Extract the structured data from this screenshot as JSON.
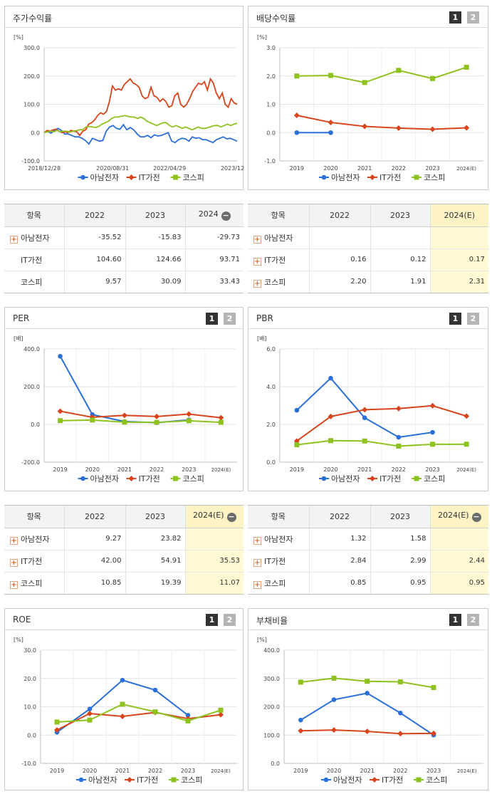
{
  "legend": [
    "아남전자",
    "IT가전",
    "코스피"
  ],
  "colors": {
    "s0": "#2b6fd8",
    "s1": "#d8441c",
    "s2": "#8dc21f"
  },
  "charts": [
    {
      "id": "ret",
      "title": "주가수익률",
      "unit": "[%]",
      "buttons": [],
      "chart_data": {
        "type": "line",
        "xlabels": [
          "2018/12/28",
          "2020/08/31",
          "2022/04/29",
          "2023/12/28"
        ],
        "yticks": [
          "300.0",
          "200.0",
          "100.0",
          "0.0",
          "-100.0"
        ],
        "ylim": [
          -100,
          300
        ],
        "series": [
          {
            "name": "아남전자",
            "values": [
              0,
              5,
              -2,
              8,
              15,
              8,
              -5,
              -5,
              -10,
              -15,
              -15,
              -20,
              -28,
              -40,
              -20,
              -25,
              -30,
              -28,
              5,
              20,
              25,
              15,
              12,
              28,
              10,
              18,
              10,
              -5,
              -15,
              -15,
              -10,
              -18,
              -8,
              -12,
              -10,
              -5,
              0,
              -30,
              -35,
              -25,
              -20,
              -22,
              -30,
              -15,
              -20,
              -18,
              -25,
              -25,
              -30,
              -35,
              -25,
              -20,
              -15,
              -22,
              -20,
              -25,
              -30
            ]
          },
          {
            "name": "IT가전",
            "values": [
              0,
              8,
              5,
              10,
              12,
              5,
              0,
              3,
              0,
              8,
              5,
              3,
              -10,
              5,
              10,
              30,
              35,
              45,
              60,
              70,
              65,
              75,
              110,
              165,
              150,
              155,
              150,
              170,
              180,
              190,
              175,
              170,
              160,
              130,
              120,
              125,
              160,
              130,
              125,
              110,
              120,
              110,
              90,
              95,
              130,
              140,
              100,
              90,
              100,
              120,
              145,
              160,
              175,
              170,
              180,
              150,
              190,
              175,
              140,
              120,
              140,
              100,
              90,
              120,
              105,
              100
            ]
          },
          {
            "name": "코스피",
            "values": [
              0,
              3,
              5,
              3,
              8,
              3,
              5,
              5,
              2,
              5,
              7,
              10,
              10,
              20,
              22,
              20,
              18,
              22,
              30,
              35,
              40,
              50,
              55,
              55,
              58,
              60,
              58,
              55,
              55,
              50,
              55,
              50,
              40,
              35,
              30,
              25,
              30,
              35,
              35,
              25,
              20,
              25,
              20,
              15,
              20,
              15,
              10,
              15,
              20,
              15,
              15,
              18,
              22,
              25,
              25,
              20,
              25,
              30,
              25,
              30,
              33
            ]
          }
        ]
      }
    },
    {
      "id": "div",
      "title": "배당수익률",
      "unit": "[%]",
      "buttons": [
        "1",
        "2"
      ],
      "chart_data": {
        "type": "line",
        "categories": [
          "2019",
          "2020",
          "2021",
          "2022",
          "2023",
          "2024(E)"
        ],
        "yticks": [
          "3.0",
          "2.0",
          "1.0",
          "0.0",
          "-1.0"
        ],
        "ylim": [
          -1,
          3
        ],
        "series": [
          {
            "name": "아남전자",
            "values": [
              0.0,
              0.0,
              null,
              null,
              null,
              null
            ]
          },
          {
            "name": "IT가전",
            "values": [
              0.61,
              0.36,
              0.22,
              0.16,
              0.12,
              0.17
            ]
          },
          {
            "name": "코스피",
            "values": [
              2.0,
              2.02,
              1.77,
              2.2,
              1.91,
              2.31
            ]
          }
        ]
      }
    },
    {
      "id": "per",
      "title": "PER",
      "unit": "[배]",
      "buttons": [
        "1",
        "2"
      ],
      "chart_data": {
        "type": "line",
        "categories": [
          "2019",
          "2020",
          "2021",
          "2022",
          "2023",
          "2024(E)"
        ],
        "yticks": [
          "400.0",
          "200.0",
          "0.0",
          "-200.0"
        ],
        "ylim": [
          -200,
          400
        ],
        "series": [
          {
            "name": "아남전자",
            "values": [
              361,
              52,
              15,
              9.27,
              23.82,
              null
            ]
          },
          {
            "name": "IT가전",
            "values": [
              70,
              38,
              48,
              42.0,
              54.91,
              35.53
            ]
          },
          {
            "name": "코스피",
            "values": [
              20,
              23,
              12,
              10.85,
              19.39,
              11.07
            ]
          }
        ]
      }
    },
    {
      "id": "pbr",
      "title": "PBR",
      "unit": "[배]",
      "buttons": [
        "1",
        "2"
      ],
      "chart_data": {
        "type": "line",
        "categories": [
          "2019",
          "2020",
          "2021",
          "2022",
          "2023",
          "2024(E)"
        ],
        "yticks": [
          "6.0",
          "4.0",
          "2.0",
          "0.0"
        ],
        "ylim": [
          0,
          6
        ],
        "series": [
          {
            "name": "아남전자",
            "values": [
              2.75,
              4.45,
              2.35,
              1.32,
              1.58,
              null
            ]
          },
          {
            "name": "IT가전",
            "values": [
              1.12,
              2.42,
              2.78,
              2.84,
              2.99,
              2.44
            ]
          },
          {
            "name": "코스피",
            "values": [
              0.92,
              1.14,
              1.12,
              0.85,
              0.95,
              0.95
            ]
          }
        ]
      }
    },
    {
      "id": "roe",
      "title": "ROE",
      "unit": "[%]",
      "buttons": [
        "1",
        "2"
      ],
      "chart_data": {
        "type": "line",
        "categories": [
          "2019",
          "2020",
          "2021",
          "2022",
          "2023",
          "2024(E)"
        ],
        "yticks": [
          "30.0",
          "20.0",
          "10.0",
          "0.0",
          "-10.0"
        ],
        "ylim": [
          -10,
          30
        ],
        "series": [
          {
            "name": "아남전자",
            "values": [
              1.0,
              9.2,
              19.4,
              15.9,
              7.0,
              null
            ]
          },
          {
            "name": "IT가전",
            "values": [
              1.8,
              7.6,
              6.6,
              8.0,
              5.8,
              7.2
            ]
          },
          {
            "name": "코스피",
            "values": [
              4.6,
              5.3,
              10.9,
              8.2,
              5.0,
              8.8
            ]
          }
        ]
      }
    },
    {
      "id": "debt",
      "title": "부채비율",
      "unit": "[%]",
      "buttons": [
        "1",
        "2"
      ],
      "chart_data": {
        "type": "line",
        "categories": [
          "2019",
          "2020",
          "2021",
          "2022",
          "2023",
          "2024(E)"
        ],
        "yticks": [
          "400.0",
          "300.0",
          "200.0",
          "100.0",
          "0.0"
        ],
        "ylim": [
          0,
          400
        ],
        "series": [
          {
            "name": "아남전자",
            "values": [
              153,
              225,
              248,
              178,
              100,
              null
            ]
          },
          {
            "name": "IT가전",
            "values": [
              115,
              118,
              113,
              105,
              106,
              null
            ]
          },
          {
            "name": "코스피",
            "values": [
              287,
              301,
              290,
              288,
              268,
              null
            ]
          }
        ]
      }
    }
  ],
  "tables": [
    {
      "id": "t_ret",
      "head": [
        "항목",
        "2022",
        "2023",
        "2024"
      ],
      "minus": true,
      "hl": false,
      "rows": [
        {
          "name": "아남전자",
          "plus": true,
          "v": [
            "-35.52",
            "-15.83",
            "-29.73"
          ]
        },
        {
          "name": "IT가전",
          "plus": false,
          "v": [
            "104.60",
            "124.66",
            "93.71"
          ]
        },
        {
          "name": "코스피",
          "plus": false,
          "v": [
            "9.57",
            "30.09",
            "33.43"
          ]
        }
      ]
    },
    {
      "id": "t_div",
      "head": [
        "항목",
        "2022",
        "2023",
        "2024(E)"
      ],
      "minus": false,
      "hl": true,
      "rows": [
        {
          "name": "아남전자",
          "plus": true,
          "v": [
            "",
            "",
            ""
          ]
        },
        {
          "name": "IT가전",
          "plus": true,
          "v": [
            "0.16",
            "0.12",
            "0.17"
          ]
        },
        {
          "name": "코스피",
          "plus": true,
          "v": [
            "2.20",
            "1.91",
            "2.31"
          ]
        }
      ]
    },
    {
      "id": "t_per",
      "head": [
        "항목",
        "2022",
        "2023",
        "2024(E)"
      ],
      "minus": true,
      "hl": true,
      "rows": [
        {
          "name": "아남전자",
          "plus": true,
          "v": [
            "9.27",
            "23.82",
            ""
          ]
        },
        {
          "name": "IT가전",
          "plus": true,
          "v": [
            "42.00",
            "54.91",
            "35.53"
          ]
        },
        {
          "name": "코스피",
          "plus": true,
          "v": [
            "10.85",
            "19.39",
            "11.07"
          ]
        }
      ]
    },
    {
      "id": "t_pbr",
      "head": [
        "항목",
        "2022",
        "2023",
        "2024(E)"
      ],
      "minus": true,
      "hl": true,
      "rows": [
        {
          "name": "아남전자",
          "plus": true,
          "v": [
            "1.32",
            "1.58",
            ""
          ]
        },
        {
          "name": "IT가전",
          "plus": true,
          "v": [
            "2.84",
            "2.99",
            "2.44"
          ]
        },
        {
          "name": "코스피",
          "plus": true,
          "v": [
            "0.85",
            "0.95",
            "0.95"
          ]
        }
      ]
    }
  ]
}
